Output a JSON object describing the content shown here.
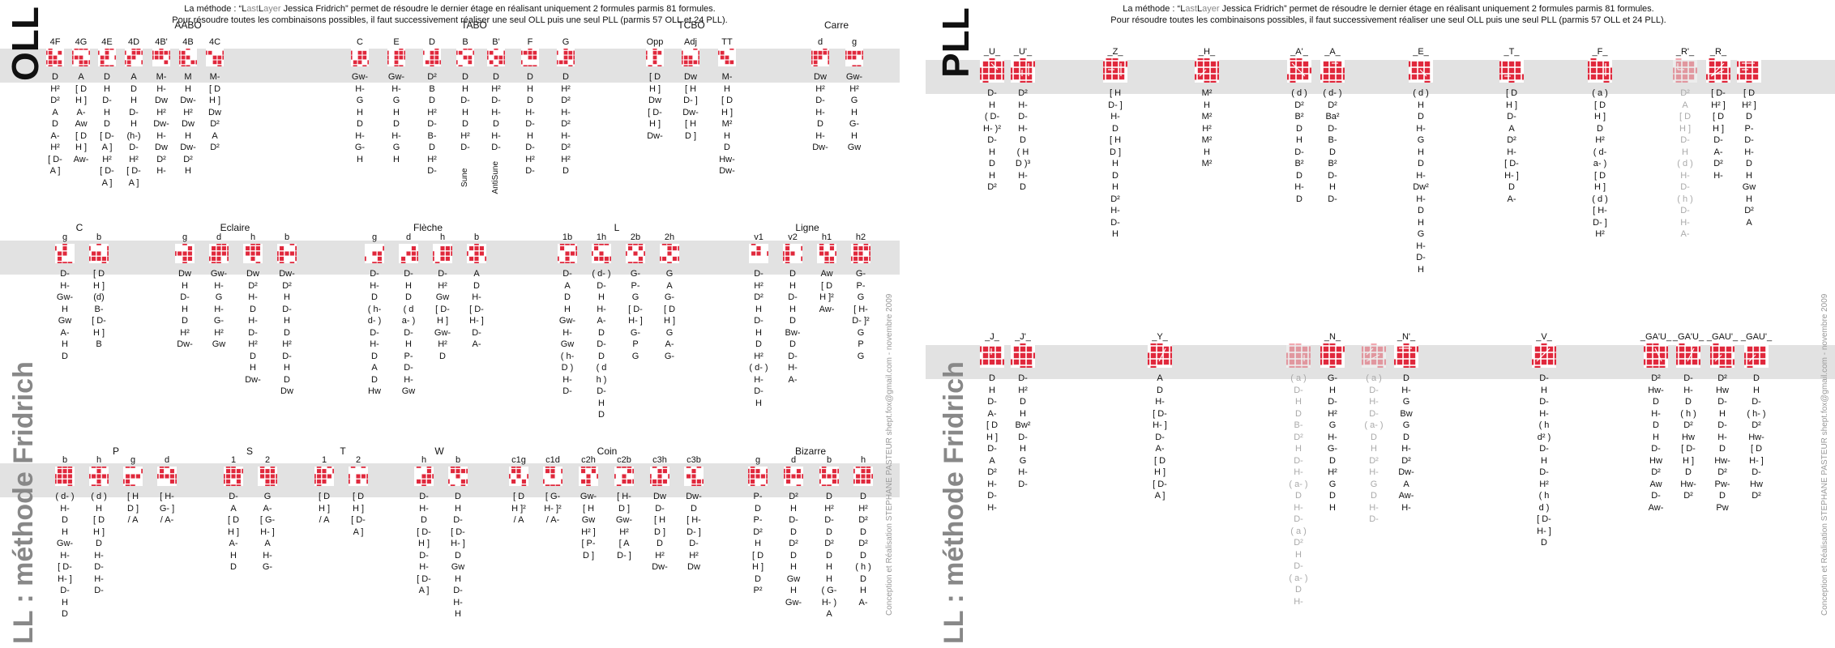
{
  "colors": {
    "face": "#e0283c",
    "band": "#e2e2e2",
    "title": "#111111",
    "subtitle": "#888888"
  },
  "intro_line1_pre": "La méthode : “",
  "intro_L": "L",
  "intro_ast": "ast",
  "intro_Layer": "L",
  "intro_ayer": "ayer",
  "intro_line1_post": " Jessica Fridrich” permet de résoudre le dernier étage en réalisant uniquement 2 formules parmis 81 formules.",
  "intro_line2": "Pour résoudre toutes les combinaisons possibles, il faut successivement réaliser une seul OLL puis une seul PLL (parmis 57 OLL et 24 PLL).",
  "title_oll": "OLL",
  "title_pll": "PLL",
  "title_method": "LL : méthode Fridrich",
  "credit": "Conception et Réalisation STEPHANE PASTEUR shept.fox@gmail.com - novembre 2009",
  "oll_row1": {
    "groups": [
      "AABO",
      "TABO",
      "TCBO",
      "Carre"
    ],
    "cases": [
      {
        "label": "4F",
        "alg": "D\nH²\nD²\nA\nD\nA-\nH²\n[ D-\nA ]"
      },
      {
        "label": "4G",
        "alg": "A\n[ D\nH ]\nA-\nAw\n[ D\nH ]\nAw-"
      },
      {
        "label": "4E",
        "alg": "D\nH\nD-\nH\nD\n[ D-\nA ]\nH²\n[ D-\nA ]"
      },
      {
        "label": "4D",
        "alg": "A\nD\nH\nD-\nH\n(h-)\nD-\nH²\n[ D-\nA ]"
      },
      {
        "label": "4B'",
        "alg": "M-\nH-\nDw\nH²\nDw-\nH-\nDw\nD²\nH-"
      },
      {
        "label": "4B",
        "alg": "M\nH\nDw-\nH²\nDw\nH\nDw-\nD²\nH"
      },
      {
        "label": "4C",
        "alg": "M-\n[ D\nH ]\nDw\nD²\nA\nD²"
      },
      {
        "label": "C",
        "alg": "Gw-\nH-\nG\nH\nD\nH-\nG-\nH"
      },
      {
        "label": "E",
        "alg": "Gw-\nH-\nG\nH\nD\nH-\nG\nH"
      },
      {
        "label": "D",
        "alg": "D²\nB\nD\nH²\nD-\nB-\nD\nH²\nD-"
      },
      {
        "label": "B",
        "alg": "D\nH\nD-\nH\nD\nH²\nD-",
        "side": "Sune"
      },
      {
        "label": "B'",
        "alg": "D\nH²\nD-\nH-\nD\nH-\nD-",
        "side": "AntiSune"
      },
      {
        "label": "F",
        "alg": "D\nH\nD\nH-\nD-\nH\nD-\nH²\nD-"
      },
      {
        "label": "G",
        "alg": "D\nH²\nD²\nH-\nD²\nH-\nD²\nH²\nD"
      },
      {
        "label": "Opp",
        "alg": "[ D\nH ]\nDw\n[ D-\nH ]\nDw-"
      },
      {
        "label": "Adj",
        "alg": "Dw\n[ H\nD- ]\nDw-\n[ H\nD ]"
      },
      {
        "label": "TT",
        "alg": "M-\nH\n[ D\nH ]\nM²\nH\nD\nHw-\nDw-"
      },
      {
        "label": "d",
        "alg": "Dw\nH²\nD-\nH-\nD\nH-\nDw-"
      },
      {
        "label": "g",
        "alg": "Gw-\nH²\nG\nH\nG-\nH\nGw"
      }
    ]
  },
  "oll_row2": {
    "groups": [
      "C",
      "Eclaire",
      "Flèche",
      "L",
      "Ligne"
    ],
    "cases": [
      {
        "label": "g",
        "alg": "D-\nH-\nGw-\nH\nGw\nA-\nH\nD"
      },
      {
        "label": "b",
        "alg": "[ D\nH ]\n(d)\nB-\n[ D-\nH ]\nB"
      },
      {
        "label": "g",
        "alg": "Dw\nH\nD-\nH\nD\nH²\nDw-"
      },
      {
        "label": "d",
        "alg": "Gw-\nH-\nG\nH-\nG-\nH²\nGw"
      },
      {
        "label": "h",
        "alg": "Dw\nD²\nH-\nD\nH-\nD-\nH²\nD\nH\nDw-"
      },
      {
        "label": "b",
        "alg": "Dw-\nD²\nH\nD-\nH\nD\nH²\nD-\nH\nD\nDw"
      },
      {
        "label": "g",
        "alg": "D-\nH-\nD\n( h-\nd- )\nD-\nH-\nD\nA\nD\nHw"
      },
      {
        "label": "d",
        "alg": "D-\nH\nD\n( d\na- )\nD-\nH\nP-\nD-\nH-\nGw"
      },
      {
        "label": "h",
        "alg": "D-\nH²\nGw\n[ D-\nH ]\nGw-\nH²\nD"
      },
      {
        "label": "b",
        "alg": "A\nD\nH-\n[ D-\nH- ]\nD-\nA-"
      },
      {
        "label": "1b",
        "alg": "D-\nA\nD\nH\nGw-\nH-\nGw\n( h-\nD )\nH-\nD-"
      },
      {
        "label": "1h",
        "alg": "( d- )\nD-\nH\nH-\nA-\nD\nD-\nD\n( d\nh )\nD-\nH\nD"
      },
      {
        "label": "2b",
        "alg": "G-\nP-\nG\n[ D-\nH- ]\nG-\nP\nG"
      },
      {
        "label": "2h",
        "alg": "G\nA\nG-\n[ D\nH ]\nG\nA-\nG-"
      },
      {
        "label": "v1",
        "alg": "D-\nH²\nD²\nH\nD-\nH\nD\nH²\n( d- )\nH-\nD-\nH"
      },
      {
        "label": "v2",
        "alg": "D\nH\nD-\nH\nD\nBw-\nD\nD-\nH-\nA-"
      },
      {
        "label": "h1",
        "alg": "Aw\n[ D\nH ]²\nAw-"
      },
      {
        "label": "h2",
        "alg": "G-\nP-\nG\n[ H-\nD- ]²\nG\nP\nG"
      }
    ]
  },
  "oll_row3": {
    "groups": [
      "P",
      "S",
      "T",
      "W",
      "Coin",
      "Bizarre"
    ],
    "cases": [
      {
        "label": "b",
        "alg": "( d- )\nH-\nD\nH\nGw-\nH-\n[ D-\nH- ]\nD-\nH\nD"
      },
      {
        "label": "h",
        "alg": "( d )\nH\n[ D\nH ]\nD\nH-\nD-\nH-\nD-"
      },
      {
        "label": "g",
        "alg": "[ H\nD ]\n/ A"
      },
      {
        "label": "d",
        "alg": "[ H-\nG- ]\n/ A-"
      },
      {
        "label": "1",
        "alg": "D-\nA\n[ D\nH ]\nA-\nH\nD"
      },
      {
        "label": "2",
        "alg": "G\nA-\n[ G-\nH- ]\nA\nH-\nG-"
      },
      {
        "label": "1",
        "alg": "[ D\nH ]\n/ A"
      },
      {
        "label": "2",
        "alg": "[ D\nH ]\n[ D-\nA ]"
      },
      {
        "label": "h",
        "alg": "D-\nH-\nD\n[ D-\nH ]\nD-\nH-\n[ D-\nA ]"
      },
      {
        "label": "b",
        "alg": "D\nH\nD-\n[ D-\nH- ]\nD\nGw\nH\nD-\nH-\nH"
      },
      {
        "label": "c1g",
        "alg": "[ D\nH ]²\n/ A"
      },
      {
        "label": "c1d",
        "alg": "[ G-\nH- ]²\n/ A-"
      },
      {
        "label": "c2h",
        "alg": "Gw-\n[ H\nGw\nH² ]\n[ P-\nD ]"
      },
      {
        "label": "c2b",
        "alg": "[ H-\nD ]\nGw-\nH²\n[ A\nD- ]"
      },
      {
        "label": "c3h",
        "alg": "Dw\nD-\n[ H\nD ]\nD\nH²\nDw-"
      },
      {
        "label": "c3b",
        "alg": "Dw-\nD\n[ H-\nD- ]\nD-\nH²\nDw"
      },
      {
        "label": "g",
        "alg": "P-\nD\nP-\nD²\nH\n[ D\nH ]\nD\nP²"
      },
      {
        "label": "d",
        "alg": "D²\nH\nD-\nD\nD²\nD\nH\nGw\nH\nGw-"
      },
      {
        "label": "b",
        "alg": "D\nH²\nD-\nD\nD²\nD\nH\nH\n( G-\nH- )\nA"
      },
      {
        "label": "h",
        "alg": "D\nH²\nD²\nD\nD²\nD\n( h )\nD\nH\nA-"
      }
    ]
  },
  "pll_row1": {
    "cases": [
      {
        "label": "_U_",
        "alg": "D-\nH\n( D-\nH- )²\nD-\nH\nD\nH\nD²"
      },
      {
        "label": "_U'_",
        "alg": "D²\nH-\nD-\nH-\nD\n( H\nD )³\nH-\nD"
      },
      {
        "label": "_Z_",
        "alg": "[ H\nD- ]\nH-\nD\n[ H\nD ]\nH\nD\nH\nD²\nH-\nD-\nH"
      },
      {
        "label": "_H_",
        "alg": "M²\nH\nM²\nH²\nM²\nH\nM²"
      },
      {
        "label": "_A'_",
        "alg": "( d )\nD²\nB²\nD\nH\nD-\nB²\nD\nH-\nD"
      },
      {
        "label": "_A_",
        "alg": "( d- )\nD²\nBa²\nD-\nB-\nD\nB²\nD-\nH\nD-"
      },
      {
        "label": "_E_",
        "alg": "( d )\nH\nD\nH-\nG\nH\nD\nH-\nDw²\nH-\nD\nH\nG\nH-\nD-\nH"
      },
      {
        "label": "_T_",
        "alg": "[ D\nH ]\nD-\nA\nD²\nH-\n[ D-\nH- ]\nD\nA-"
      },
      {
        "label": "_F_",
        "alg": "( a )\n[ D\nH ]\nD\nH²\n( d-\na- )\n[ D\nH ]\n( d )\n[ H-\nD- ]\nH²"
      },
      {
        "label": "_R'_",
        "alg": "D²\nA\n[ D\nH ]\nD-\nH\n( d )\nH-\nD-\n( h )\nD-\nH-\nA-",
        "dim": true
      },
      {
        "label": "_R_",
        "alg": "[ D-\nH² ]\n[ D\nH ]\nD-\nA-\nD²\nH-"
      },
      {
        "label": "",
        "alg": "[ D\nH² ]\nD\nP-\nD-\nH-\nD\nH\nGw\nH\nD²\nA"
      }
    ]
  },
  "pll_row2": {
    "cases": [
      {
        "label": "_J_",
        "alg": "D\nH\nD-\nA-\n[ D\nH ]\nD-\nA\nD²\nH-\nD-\nH-"
      },
      {
        "label": "_J'_",
        "alg": "D-\nH²\nD\nH\nBw²\nD-\nH\nG\nH-\nD-"
      },
      {
        "label": "_Y_",
        "alg": "A\nD\nH-\n[ D-\nH- ]\nD-\nA-\n[ D\nH ]\n[ D-\nA ]"
      },
      {
        "label": "",
        "alg": "( a )\nD-\nH\nD\nB-\nD²\nH\nD-\nH-\n( a- )\nD\nH-\nD-\n( a )\nD²\nH\nD-\n( a- )\nD\nH-",
        "dim": true
      },
      {
        "label": "_N_",
        "alg": "G-\nH\nD-\nH²\nG\nH-\nG-\nD\nH²\nG\nD\nH"
      },
      {
        "label": "",
        "alg": "( a )\nD-\nH-\nD-\n( a- )\nD\nH\nD²\nH-\nG\nD\nH-\nD-",
        "dim": true
      },
      {
        "label": "_N'_",
        "alg": "D\nH-\nG\nBw\nG\nD\nH-\nD²\nDw-\nA\nAw-\nH-"
      },
      {
        "label": "_V_",
        "alg": "D-\nH\nD-\nH-\n( h\nd² )\nD-\nH\nD-\nH²\n( h\nd )\n[ D-\nH- ]\nD"
      },
      {
        "label": "_GA'U_",
        "alg": "D²\nHw-\nD\nH-\nD\nH\nD-\nHw\nD²\nAw\nD-\nAw-"
      },
      {
        "label": "_GA'U_",
        "alg": "D-\nH-\nD\n( h )\nD²\nHw\n[ D-\nH ]\nD\nHw-\nD²"
      },
      {
        "label": "_GAU'_",
        "alg": "D²\nHw\nD-\nH\nD-\nH-\nD\nHw-\nD²\nPw-\nD\nPw"
      },
      {
        "label": "_GAU'_",
        "alg": "D\nH\nD-\n( h- )\nD²\nHw-\n[ D\nH- ]\nD-\nHw\nD²"
      }
    ]
  }
}
